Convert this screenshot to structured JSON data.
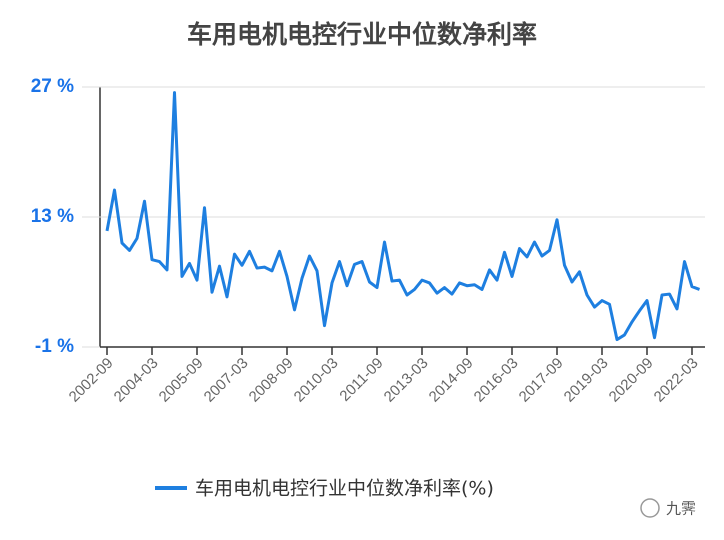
{
  "chart_data": {
    "type": "line",
    "title": "车用电机电控行业中位数净利率",
    "categories": [
      "2002-09",
      null,
      null,
      null,
      null,
      null,
      "2004-03",
      null,
      null,
      null,
      null,
      null,
      "2005-09",
      null,
      null,
      null,
      null,
      null,
      "2007-03",
      null,
      null,
      null,
      null,
      null,
      "2008-09",
      null,
      null,
      null,
      null,
      null,
      "2010-03",
      null,
      null,
      null,
      null,
      null,
      "2011-09",
      null,
      null,
      null,
      null,
      null,
      "2013-03",
      null,
      null,
      null,
      null,
      null,
      "2014-09",
      null,
      null,
      null,
      null,
      null,
      "2016-03",
      null,
      null,
      null,
      null,
      null,
      "2017-09",
      null,
      null,
      null,
      null,
      null,
      "2019-03",
      null,
      null,
      null,
      null,
      null,
      "2020-09",
      null,
      null,
      null,
      null,
      null,
      "2022-03",
      null
    ],
    "series": [
      {
        "name": "车用电机电控行业中位数净利率(%)",
        "color": "#1e7fe0",
        "values": [
          11.5,
          15.9,
          10.2,
          9.4,
          10.7,
          14.7,
          8.4,
          8.2,
          7.3,
          26.4,
          6.6,
          8.0,
          6.2,
          14.0,
          4.9,
          7.7,
          4.4,
          9.0,
          7.8,
          9.3,
          7.5,
          7.6,
          7.2,
          9.3,
          6.6,
          3.0,
          6.4,
          8.8,
          7.2,
          1.3,
          5.9,
          8.2,
          5.6,
          7.9,
          8.2,
          6.0,
          5.4,
          10.3,
          6.1,
          6.2,
          4.6,
          5.2,
          6.2,
          5.9,
          4.8,
          5.4,
          4.7,
          5.9,
          5.6,
          5.7,
          5.2,
          7.3,
          6.2,
          9.2,
          6.6,
          9.6,
          8.7,
          10.3,
          8.8,
          9.4,
          12.7,
          7.8,
          6.0,
          7.1,
          4.6,
          3.3,
          4.0,
          3.6,
          -0.2,
          0.3,
          1.7,
          2.9,
          4.0,
          0.0,
          4.6,
          4.7,
          3.1,
          8.2,
          5.5,
          5.2
        ]
      }
    ],
    "ylim": [
      -1,
      27
    ],
    "yticks": [
      {
        "value": -1,
        "label": "-1 %"
      },
      {
        "value": 13,
        "label": "13 %"
      },
      {
        "value": 27,
        "label": "27 %"
      }
    ],
    "grid": true,
    "legend": "bottom",
    "watermark": "九霁"
  }
}
